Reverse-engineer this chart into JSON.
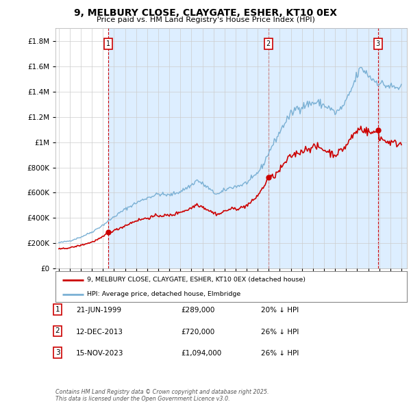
{
  "title_line1": "9, MELBURY CLOSE, CLAYGATE, ESHER, KT10 0EX",
  "title_line2": "Price paid vs. HM Land Registry's House Price Index (HPI)",
  "ylim": [
    0,
    1900000
  ],
  "yticks": [
    0,
    200000,
    400000,
    600000,
    800000,
    1000000,
    1200000,
    1400000,
    1600000,
    1800000
  ],
  "sale_color": "#cc0000",
  "hpi_color": "#7ab0d4",
  "shade_color": "#ddeeff",
  "legend_sale": "9, MELBURY CLOSE, CLAYGATE, ESHER, KT10 0EX (detached house)",
  "legend_hpi": "HPI: Average price, detached house, Elmbridge",
  "table_data": [
    {
      "num": "1",
      "date": "21-JUN-1999",
      "price": "£289,000",
      "pct": "20% ↓ HPI"
    },
    {
      "num": "2",
      "date": "12-DEC-2013",
      "price": "£720,000",
      "pct": "26% ↓ HPI"
    },
    {
      "num": "3",
      "date": "15-NOV-2023",
      "price": "£1,094,000",
      "pct": "26% ↓ HPI"
    }
  ],
  "footer": "Contains HM Land Registry data © Crown copyright and database right 2025.\nThis data is licensed under the Open Government Licence v3.0.",
  "background_color": "#ffffff",
  "grid_color": "#cccccc",
  "x_start_year": 1995,
  "x_end_year": 2026,
  "sale_year_decimals": [
    1999.47,
    2013.95,
    2023.88
  ],
  "sale_prices": [
    289000,
    720000,
    1094000
  ],
  "sale_labels": [
    "1",
    "2",
    "3"
  ],
  "hpi_anchors_x": [
    1995.0,
    1996.0,
    1997.0,
    1998.0,
    1999.0,
    2000.0,
    2001.0,
    2002.0,
    2003.0,
    2004.0,
    2005.0,
    2006.0,
    2007.0,
    2007.5,
    2008.0,
    2008.5,
    2009.0,
    2009.5,
    2010.0,
    2010.5,
    2011.0,
    2011.5,
    2012.0,
    2012.5,
    2013.0,
    2013.5,
    2014.0,
    2014.5,
    2015.0,
    2015.5,
    2016.0,
    2016.5,
    2017.0,
    2017.5,
    2018.0,
    2018.5,
    2019.0,
    2019.5,
    2020.0,
    2020.5,
    2021.0,
    2021.5,
    2022.0,
    2022.3,
    2022.6,
    2023.0,
    2023.5,
    2024.0,
    2024.5,
    2025.0,
    2025.5
  ],
  "hpi_anchors_y": [
    205000,
    220000,
    250000,
    290000,
    345000,
    410000,
    470000,
    520000,
    560000,
    590000,
    580000,
    610000,
    660000,
    700000,
    670000,
    640000,
    600000,
    590000,
    620000,
    640000,
    650000,
    660000,
    680000,
    710000,
    760000,
    820000,
    920000,
    1000000,
    1080000,
    1160000,
    1220000,
    1270000,
    1280000,
    1300000,
    1310000,
    1310000,
    1290000,
    1270000,
    1230000,
    1260000,
    1320000,
    1420000,
    1530000,
    1580000,
    1570000,
    1530000,
    1490000,
    1470000,
    1450000,
    1440000,
    1430000
  ],
  "red_anchors_x": [
    1995.0,
    1996.0,
    1997.0,
    1998.0,
    1999.0,
    1999.47,
    2000.0,
    2001.0,
    2002.0,
    2003.0,
    2004.0,
    2005.0,
    2005.5,
    2006.0,
    2006.5,
    2007.0,
    2007.5,
    2008.0,
    2008.5,
    2009.0,
    2009.5,
    2010.0,
    2010.5,
    2011.0,
    2011.5,
    2012.0,
    2012.5,
    2013.0,
    2013.5,
    2013.95,
    2014.5,
    2015.0,
    2015.5,
    2016.0,
    2016.5,
    2017.0,
    2017.5,
    2018.0,
    2018.5,
    2019.0,
    2019.5,
    2020.0,
    2020.5,
    2021.0,
    2021.5,
    2022.0,
    2022.3,
    2022.6,
    2023.0,
    2023.5,
    2023.88,
    2024.0,
    2024.5,
    2025.0,
    2025.5
  ],
  "red_anchors_y": [
    155000,
    165000,
    185000,
    210000,
    250000,
    289000,
    300000,
    340000,
    380000,
    400000,
    420000,
    420000,
    430000,
    450000,
    460000,
    480000,
    510000,
    490000,
    465000,
    440000,
    430000,
    455000,
    470000,
    475000,
    480000,
    500000,
    530000,
    580000,
    640000,
    720000,
    730000,
    780000,
    840000,
    890000,
    910000,
    930000,
    950000,
    960000,
    960000,
    940000,
    920000,
    900000,
    930000,
    970000,
    1040000,
    1090000,
    1110000,
    1100000,
    1080000,
    1070000,
    1094000,
    1040000,
    1010000,
    1000000,
    990000
  ]
}
